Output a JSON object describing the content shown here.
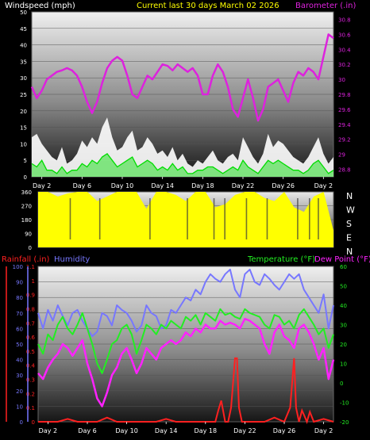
{
  "header": {
    "left": "Windspeed (mph)",
    "center": "Current last 30 days March 02 2026",
    "right": "Barometer (.in)"
  },
  "colors": {
    "background": "#000000",
    "label": "#ffffff",
    "gust": "#ffffff",
    "wind": "#00dd00",
    "barometer": "#dd22dd",
    "direction": "#ffff00",
    "rain": "#ff2020",
    "humidity": "#7777ff",
    "temperature": "#22ee22",
    "dewpoint": "#ff22ff",
    "center_title": "#ffff00"
  },
  "x_labels": [
    "Day 2",
    "Day 6",
    "Day 10",
    "Day 14",
    "Day 18",
    "Day 22",
    "Day 26",
    "Day 2"
  ],
  "direction_labels": [
    "N",
    "W",
    "S",
    "E",
    "N"
  ],
  "chart_data": [
    {
      "type": "line",
      "name": "wind-barometer",
      "ylabel": "Windspeed (mph)",
      "y2label": "Barometer (.in)",
      "ylim": [
        0,
        50
      ],
      "y_ticks": [
        "0",
        "5",
        "10",
        "15",
        "20",
        "25",
        "30",
        "35",
        "40",
        "45",
        "50"
      ],
      "y2lim": [
        28.7,
        30.9
      ],
      "y2_ticks": [
        "28.8",
        "29",
        "29.2",
        "29.4",
        "29.6",
        "29.8",
        "30",
        "30.2",
        "30.4",
        "30.6",
        "30.8"
      ],
      "x_day_range": [
        0,
        30
      ],
      "series": [
        {
          "name": "Barometer (.in)",
          "color": "barometer",
          "x": [
            0,
            0.5,
            1,
            1.5,
            2,
            2.5,
            3,
            3.5,
            4,
            4.5,
            5,
            5.5,
            6,
            6.5,
            7,
            7.5,
            8,
            8.5,
            9,
            9.5,
            10,
            10.5,
            11,
            11.5,
            12,
            12.5,
            13,
            13.5,
            14,
            14.5,
            15,
            15.5,
            16,
            16.5,
            17,
            17.5,
            18,
            18.5,
            19,
            19.5,
            20,
            20.5,
            21,
            21.5,
            22,
            22.5,
            23,
            23.5,
            24,
            24.5,
            25,
            25.5,
            26,
            26.5,
            27,
            27.5,
            28,
            28.5,
            29,
            29.5,
            30
          ],
          "y": [
            29.9,
            29.75,
            29.85,
            30.0,
            30.05,
            30.1,
            30.12,
            30.15,
            30.12,
            30.05,
            29.9,
            29.7,
            29.55,
            29.7,
            29.95,
            30.15,
            30.25,
            30.3,
            30.25,
            30.05,
            29.8,
            29.75,
            29.9,
            30.05,
            30.0,
            30.1,
            30.2,
            30.18,
            30.12,
            30.2,
            30.15,
            30.1,
            30.15,
            30.05,
            29.8,
            29.8,
            30.05,
            30.2,
            30.1,
            29.9,
            29.6,
            29.5,
            29.75,
            30.0,
            29.75,
            29.45,
            29.6,
            29.9,
            29.95,
            30.0,
            29.85,
            29.7,
            29.95,
            30.1,
            30.05,
            30.15,
            30.1,
            30.0,
            30.3,
            30.6,
            30.55
          ]
        },
        {
          "name": "Gust (mph)",
          "color": "gust",
          "x": [
            0,
            0.5,
            1,
            1.5,
            2,
            2.5,
            3,
            3.5,
            4,
            4.5,
            5,
            5.5,
            6,
            6.5,
            7,
            7.5,
            8,
            8.5,
            9,
            9.5,
            10,
            10.5,
            11,
            11.5,
            12,
            12.5,
            13,
            13.5,
            14,
            14.5,
            15,
            15.5,
            16,
            16.5,
            17,
            17.5,
            18,
            18.5,
            19,
            19.5,
            20,
            20.5,
            21,
            21.5,
            22,
            22.5,
            23,
            23.5,
            24,
            24.5,
            25,
            25.5,
            26,
            26.5,
            27,
            27.5,
            28,
            28.5,
            29,
            29.5,
            30
          ],
          "y": [
            12,
            13,
            10,
            8,
            6,
            5,
            9,
            4,
            5,
            7,
            11,
            9,
            12,
            10,
            15,
            18,
            12,
            8,
            9,
            12,
            14,
            8,
            9,
            12,
            10,
            7,
            8,
            6,
            9,
            5,
            7,
            4,
            3,
            5,
            4,
            6,
            8,
            5,
            4,
            6,
            7,
            5,
            12,
            9,
            6,
            4,
            7,
            13,
            9,
            11,
            10,
            8,
            6,
            5,
            4,
            6,
            9,
            12,
            7,
            4,
            6
          ]
        },
        {
          "name": "Windspeed (mph)",
          "color": "wind",
          "x": [
            0,
            0.5,
            1,
            1.5,
            2,
            2.5,
            3,
            3.5,
            4,
            4.5,
            5,
            5.5,
            6,
            6.5,
            7,
            7.5,
            8,
            8.5,
            9,
            9.5,
            10,
            10.5,
            11,
            11.5,
            12,
            12.5,
            13,
            13.5,
            14,
            14.5,
            15,
            15.5,
            16,
            16.5,
            17,
            17.5,
            18,
            18.5,
            19,
            19.5,
            20,
            20.5,
            21,
            21.5,
            22,
            22.5,
            23,
            23.5,
            24,
            24.5,
            25,
            25.5,
            26,
            26.5,
            27,
            27.5,
            28,
            28.5,
            29,
            29.5,
            30
          ],
          "y": [
            4,
            3,
            5,
            2,
            2,
            1,
            3,
            1,
            2,
            2,
            4,
            3,
            5,
            4,
            6,
            7,
            5,
            3,
            4,
            5,
            6,
            3,
            4,
            5,
            4,
            2,
            3,
            2,
            4,
            2,
            3,
            1,
            1,
            2,
            2,
            3,
            3,
            2,
            1,
            2,
            3,
            2,
            5,
            3,
            2,
            1,
            3,
            5,
            4,
            5,
            4,
            3,
            2,
            2,
            1,
            2,
            4,
            5,
            3,
            1,
            2
          ]
        }
      ]
    },
    {
      "type": "area",
      "name": "wind-direction",
      "y_ticks": [
        "0",
        "90",
        "180",
        "270",
        "360"
      ],
      "ylim": [
        0,
        360
      ],
      "x_day_range": [
        0,
        30
      ],
      "x": [
        0,
        1,
        2,
        3,
        4,
        5,
        6,
        7,
        8,
        9,
        10,
        11,
        12,
        13,
        14,
        15,
        16,
        17,
        18,
        19,
        20,
        21,
        22,
        23,
        24,
        25,
        26,
        27,
        28,
        29,
        30
      ],
      "y": [
        360,
        360,
        330,
        350,
        360,
        360,
        300,
        330,
        360,
        360,
        360,
        250,
        360,
        360,
        340,
        300,
        360,
        360,
        260,
        280,
        340,
        360,
        360,
        320,
        300,
        360,
        260,
        230,
        330,
        360,
        110
      ]
    },
    {
      "type": "line",
      "name": "rain-humidity-temp",
      "y_left_outer_label": "Rainfall (.in)",
      "y_left_inner_label": "Humidity",
      "y_right_label_temp": "Temperature (°F)",
      "y_right_label_dew": "Dew Point (°F)",
      "humidity_ticks": [
        "0",
        "10",
        "20",
        "30",
        "40",
        "50",
        "60",
        "70",
        "80",
        "90",
        "100"
      ],
      "humidity_lim": [
        0,
        100
      ],
      "rain_ticks": [
        "0",
        "0.1",
        "0.2",
        "0.3",
        "0.4",
        "0.5",
        "0.6",
        "0.7",
        "0.8",
        "0.9",
        "1",
        "1.1"
      ],
      "rain_lim": [
        0,
        1.1
      ],
      "temp_ticks": [
        "-20",
        "-10",
        "0",
        "10",
        "20",
        "30",
        "40",
        "50",
        "60"
      ],
      "temp_lim": [
        -20,
        60
      ],
      "x_day_range": [
        0,
        30
      ],
      "series": [
        {
          "name": "Humidity",
          "color": "humidity",
          "x": [
            0,
            0.5,
            1,
            1.5,
            2,
            2.5,
            3,
            3.5,
            4,
            4.5,
            5,
            5.5,
            6,
            6.5,
            7,
            7.5,
            8,
            8.5,
            9,
            9.5,
            10,
            10.5,
            11,
            11.5,
            12,
            12.5,
            13,
            13.5,
            14,
            14.5,
            15,
            15.5,
            16,
            16.5,
            17,
            17.5,
            18,
            18.5,
            19,
            19.5,
            20,
            20.5,
            21,
            21.5,
            22,
            22.5,
            23,
            23.5,
            24,
            24.5,
            25,
            25.5,
            26,
            26.5,
            27,
            27.5,
            28,
            28.5,
            29,
            29.5,
            30
          ],
          "y": [
            70,
            60,
            72,
            65,
            75,
            68,
            62,
            70,
            72,
            65,
            60,
            55,
            58,
            70,
            68,
            62,
            75,
            72,
            70,
            65,
            58,
            62,
            75,
            70,
            68,
            60,
            62,
            72,
            70,
            75,
            80,
            78,
            85,
            82,
            90,
            95,
            92,
            90,
            95,
            98,
            85,
            80,
            95,
            98,
            90,
            88,
            95,
            92,
            88,
            85,
            90,
            95,
            92,
            95,
            85,
            80,
            75,
            70,
            82,
            60,
            75
          ]
        },
        {
          "name": "Temperature (°F)",
          "color": "temperature",
          "x": [
            0,
            0.5,
            1,
            1.5,
            2,
            2.5,
            3,
            3.5,
            4,
            4.5,
            5,
            5.5,
            6,
            6.5,
            7,
            7.5,
            8,
            8.5,
            9,
            9.5,
            10,
            10.5,
            11,
            11.5,
            12,
            12.5,
            13,
            13.5,
            14,
            14.5,
            15,
            15.5,
            16,
            16.5,
            17,
            17.5,
            18,
            18.5,
            19,
            19.5,
            20,
            20.5,
            21,
            21.5,
            22,
            22.5,
            23,
            23.5,
            24,
            24.5,
            25,
            25.5,
            26,
            26.5,
            27,
            27.5,
            28,
            28.5,
            29,
            29.5,
            30
          ],
          "y": [
            20,
            15,
            25,
            22,
            30,
            34,
            28,
            25,
            30,
            36,
            28,
            20,
            10,
            5,
            12,
            20,
            22,
            28,
            30,
            25,
            15,
            22,
            30,
            28,
            25,
            30,
            28,
            32,
            30,
            28,
            34,
            32,
            35,
            30,
            36,
            34,
            32,
            38,
            35,
            36,
            34,
            33,
            38,
            36,
            35,
            34,
            30,
            28,
            35,
            34,
            30,
            32,
            28,
            35,
            38,
            34,
            30,
            25,
            28,
            18,
            25
          ]
        },
        {
          "name": "Dew Point (°F)",
          "color": "dewpoint",
          "x": [
            0,
            0.5,
            1,
            1.5,
            2,
            2.5,
            3,
            3.5,
            4,
            4.5,
            5,
            5.5,
            6,
            6.5,
            7,
            7.5,
            8,
            8.5,
            9,
            9.5,
            10,
            10.5,
            11,
            11.5,
            12,
            12.5,
            13,
            13.5,
            14,
            14.5,
            15,
            15.5,
            16,
            16.5,
            17,
            17.5,
            18,
            18.5,
            19,
            19.5,
            20,
            20.5,
            21,
            21.5,
            22,
            22.5,
            23,
            23.5,
            24,
            24.5,
            25,
            25.5,
            26,
            26.5,
            27,
            27.5,
            28,
            28.5,
            29,
            29.5,
            30
          ],
          "y": [
            5,
            2,
            8,
            12,
            15,
            20,
            18,
            14,
            18,
            22,
            10,
            2,
            -8,
            -12,
            -5,
            4,
            8,
            15,
            18,
            12,
            5,
            10,
            18,
            15,
            12,
            18,
            20,
            22,
            20,
            22,
            26,
            24,
            28,
            26,
            30,
            28,
            28,
            32,
            30,
            31,
            30,
            28,
            33,
            32,
            30,
            28,
            20,
            15,
            26,
            30,
            24,
            22,
            18,
            28,
            30,
            26,
            20,
            12,
            18,
            2,
            12
          ]
        },
        {
          "name": "Rainfall (.in)",
          "color": "rain",
          "x": [
            0,
            1,
            2,
            3,
            4,
            5,
            6,
            7,
            8,
            9,
            10,
            11,
            12,
            13,
            14,
            15,
            16,
            17,
            18,
            18.3,
            18.6,
            19,
            19.3,
            19.6,
            20,
            20.2,
            20.4,
            20.7,
            21,
            22,
            23,
            24,
            25,
            25.3,
            25.6,
            26,
            26.2,
            26.5,
            26.8,
            27,
            27.3,
            27.6,
            28,
            29,
            30
          ],
          "y": [
            0,
            0,
            0,
            0.02,
            0,
            0,
            0,
            0.03,
            0,
            0,
            0,
            0,
            0,
            0.02,
            0,
            0,
            0,
            0,
            0,
            0.08,
            0.15,
            0,
            0,
            0.1,
            0.45,
            0.45,
            0.1,
            0,
            0,
            0,
            0,
            0.03,
            0,
            0.05,
            0.1,
            0.45,
            0.1,
            0,
            0.08,
            0.05,
            0,
            0.07,
            0,
            0.02,
            0
          ]
        }
      ]
    }
  ]
}
